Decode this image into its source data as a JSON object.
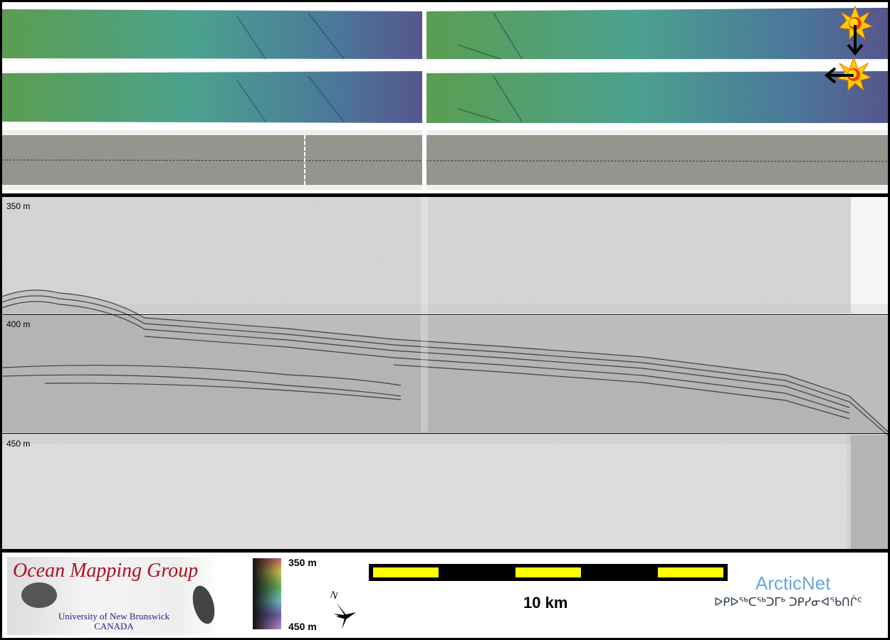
{
  "depth_labels": {
    "top": "350 m",
    "mid": "400 m",
    "bottom": "450 m"
  },
  "colorbar": {
    "top": "350 m",
    "bottom": "450 m"
  },
  "scale_bar": {
    "label": "10 km",
    "colors": [
      "#ffff00",
      "#000000"
    ]
  },
  "logos": {
    "omg_title": "Ocean Mapping Group",
    "omg_sub1": "University of New Brunswick",
    "omg_sub2": "CANADA",
    "arcticnet": "ArcticNet",
    "arcticnet_syllabics": "ᐅᑭᐅᖅᑕᖅᑐᒥᒃ ᑐᑭᓯᓂᐊᖃᑎᒌᑦ"
  },
  "compass": {
    "label": "N"
  },
  "icons": [
    "sun-illumination-icon",
    "arrow-down-icon",
    "arrow-left-icon",
    "north-arrow-icon"
  ]
}
